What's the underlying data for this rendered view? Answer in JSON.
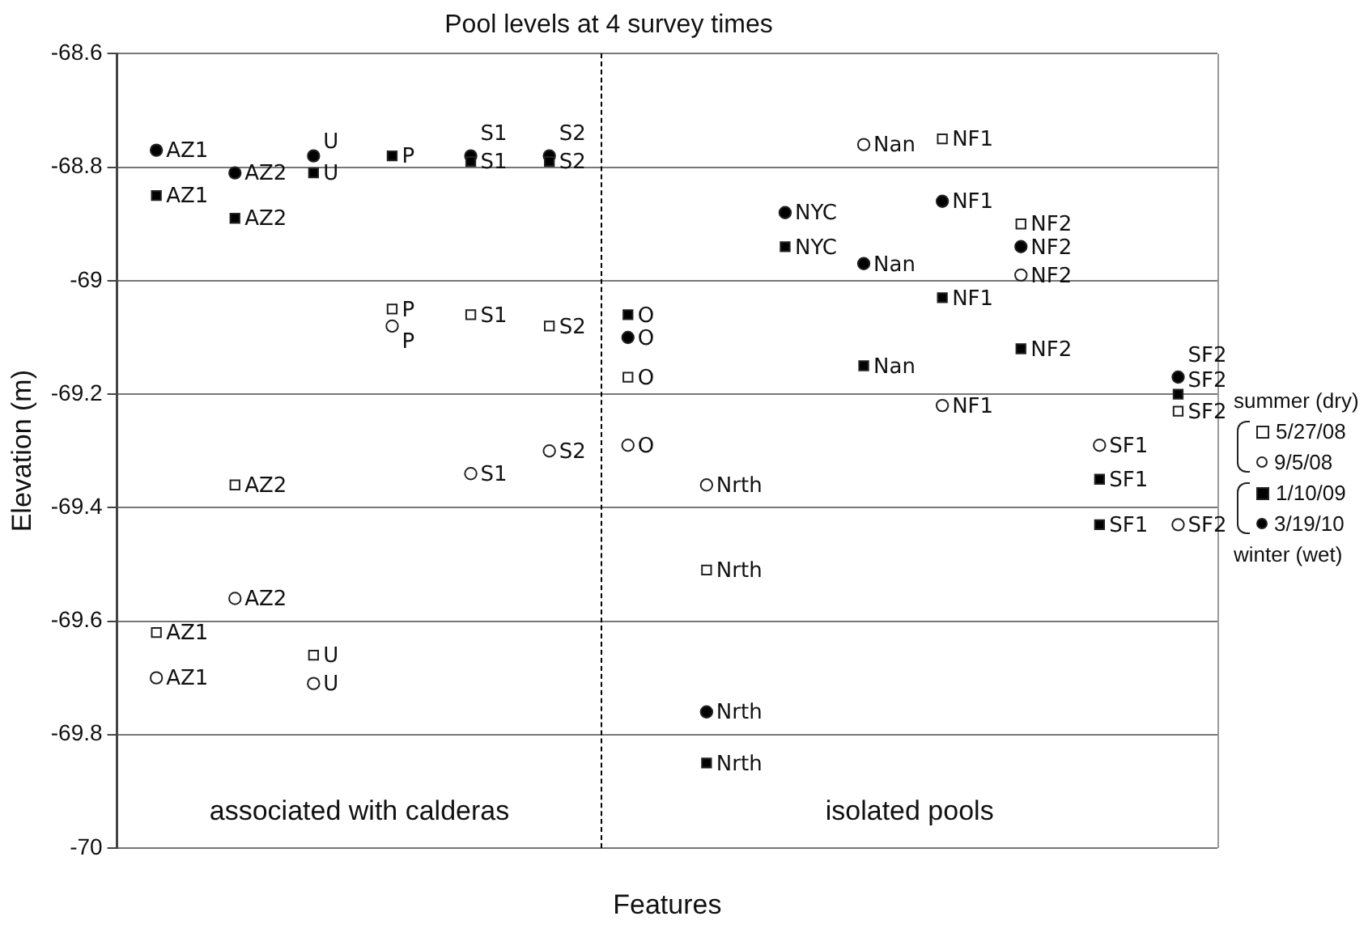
{
  "chart_data": {
    "type": "scatter",
    "title": "Pool levels at 4 survey times",
    "xlabel": "Features",
    "ylabel": "Elevation (m)",
    "categories": [
      null,
      null,
      null,
      null,
      null,
      null,
      null,
      null,
      null,
      null,
      null,
      null,
      null,
      null
    ],
    "ylim": [
      -70,
      -68.6
    ],
    "yticks": [
      -70,
      -69.8,
      -69.6,
      -69.4,
      -69.2,
      -69,
      -68.8,
      -68.6
    ],
    "grid": "y",
    "legend": "right",
    "annotations": [
      "associated with calderas",
      "isolated pools",
      "summer (dry)",
      "winter (wet)"
    ],
    "series": [
      {
        "name": "5/27/08",
        "color": "#ffffff",
        "marker": "square",
        "values": [
          -69.62,
          -69.36,
          -69.66,
          -69.05,
          -69.06,
          -69.08,
          -69.17,
          -69.51,
          null,
          null,
          -68.75,
          -68.9,
          null,
          -69.23
        ],
        "value_labels": [
          "AZ1",
          "AZ2",
          "U",
          "P",
          "S1",
          "S2",
          "O",
          "Nrth",
          null,
          null,
          "NF1",
          "NF2",
          null,
          "SF2"
        ]
      },
      {
        "name": "9/5/08",
        "color": "#ffffff",
        "marker": "circle",
        "values": [
          -69.7,
          -69.56,
          -69.71,
          -69.08,
          -69.34,
          -69.3,
          -69.29,
          -69.36,
          null,
          -68.76,
          -69.22,
          -68.99,
          -69.29,
          -69.43
        ],
        "value_labels": [
          "AZ1",
          "AZ2",
          "U",
          "P",
          "S1",
          "S2",
          "O",
          "Nrth",
          null,
          "Nan",
          "NF1",
          "NF2",
          "SF1",
          "SF2"
        ]
      },
      {
        "name": "1/10/09",
        "color": "#000000",
        "marker": "square",
        "values": [
          -68.85,
          -68.89,
          -68.81,
          -68.78,
          -68.79,
          -68.79,
          -69.06,
          -69.85,
          -68.94,
          -69.15,
          -69.03,
          -69.12,
          -69.35,
          -69.2
        ],
        "value_labels": [
          "AZ1",
          "AZ2",
          "U",
          "P",
          "S1",
          "S2",
          "O",
          "Nrth",
          "NYC",
          "Nan",
          "NF1",
          "NF2",
          "SF1",
          "SF2"
        ]
      },
      {
        "name": "3/19/10",
        "color": "#000000",
        "marker": "circle",
        "values": [
          -68.77,
          -68.81,
          -68.78,
          null,
          -68.78,
          -68.78,
          -69.1,
          -69.76,
          -68.88,
          -68.97,
          -68.86,
          -68.94,
          null,
          -69.17
        ],
        "value_labels": [
          "AZ1",
          "AZ2",
          "U",
          null,
          "S1",
          "S2",
          "O",
          "Nrth",
          "NYC",
          "Nan",
          "NF1",
          "NF2",
          null,
          "SF2"
        ]
      },
      {
        "color": "#000000",
        "marker": "square",
        "values": [
          null,
          null,
          null,
          null,
          null,
          null,
          null,
          null,
          null,
          null,
          null,
          null,
          -69.43,
          null
        ],
        "value_labels": [
          null,
          null,
          null,
          null,
          null,
          null,
          null,
          null,
          null,
          null,
          null,
          null,
          "SF1",
          null
        ]
      }
    ]
  }
}
